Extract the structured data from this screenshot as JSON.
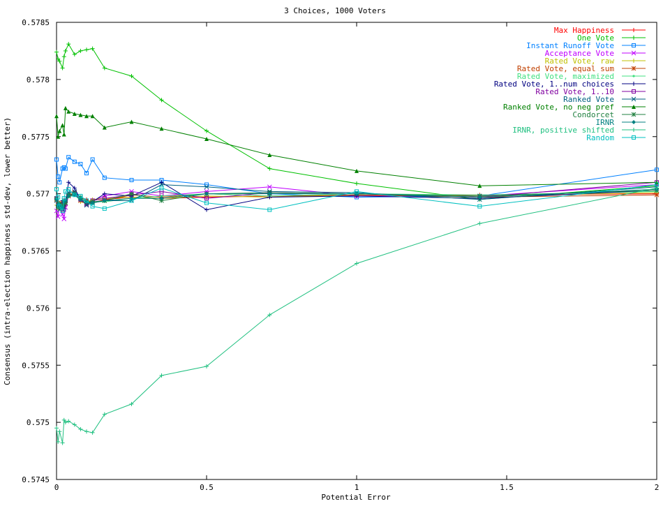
{
  "chart_data": {
    "type": "line",
    "title": "3 Choices, 1000 Voters",
    "xlabel": "Potential Error",
    "ylabel": "Consensus (intra-election happiness std-dev, lower better)",
    "xlim": [
      0,
      2
    ],
    "ylim": [
      0.5745,
      0.5785
    ],
    "x_ticks": [
      {
        "value": 0,
        "label": "0"
      },
      {
        "value": 0.5,
        "label": "0.5"
      },
      {
        "value": 1,
        "label": "1"
      },
      {
        "value": 1.5,
        "label": "1.5"
      },
      {
        "value": 2,
        "label": "2"
      }
    ],
    "y_ticks": [
      {
        "value": 0.5745,
        "label": "0.5745"
      },
      {
        "value": 0.575,
        "label": "0.575"
      },
      {
        "value": 0.5755,
        "label": "0.5755"
      },
      {
        "value": 0.576,
        "label": "0.576"
      },
      {
        "value": 0.5765,
        "label": "0.5765"
      },
      {
        "value": 0.577,
        "label": "0.577"
      },
      {
        "value": 0.5775,
        "label": "0.5775"
      },
      {
        "value": 0.578,
        "label": "0.578"
      },
      {
        "value": 0.5785,
        "label": "0.5785"
      }
    ],
    "grid": false,
    "legend_position": "top-right",
    "x": [
      0,
      0.005,
      0.01,
      0.02,
      0.025,
      0.03,
      0.04,
      0.06,
      0.08,
      0.1,
      0.12,
      0.16,
      0.25,
      0.35,
      0.5,
      0.71,
      1,
      1.41,
      2
    ],
    "series": [
      {
        "name": "Max Happiness",
        "color": "#ff0000",
        "marker": "plus-line",
        "values": [
          0.5769,
          0.57692,
          0.57688,
          0.5769,
          0.57687,
          0.5769,
          0.57698,
          0.577,
          0.57697,
          0.57695,
          0.57692,
          0.57695,
          0.57697,
          0.57696,
          0.57697,
          0.57698,
          0.57698,
          0.57699,
          0.577
        ]
      },
      {
        "name": "One Vote",
        "color": "#00c000",
        "marker": "plus",
        "values": [
          0.57824,
          0.57818,
          0.57816,
          0.5781,
          0.5782,
          0.57825,
          0.57831,
          0.57822,
          0.57825,
          0.57826,
          0.57827,
          0.5781,
          0.57803,
          0.57782,
          0.57755,
          0.57722,
          0.57709,
          0.57695,
          0.57707
        ]
      },
      {
        "name": "Instant Runoff Vote",
        "color": "#0080ff",
        "marker": "square",
        "values": [
          0.5773,
          0.57715,
          0.5771,
          0.57722,
          0.57723,
          0.57722,
          0.57732,
          0.57728,
          0.57726,
          0.57718,
          0.5773,
          0.57714,
          0.57712,
          0.57712,
          0.57708,
          0.577,
          0.57697,
          0.57698,
          0.57721
        ]
      },
      {
        "name": "Acceptance Vote",
        "color": "#c000ff",
        "marker": "x",
        "values": [
          0.57685,
          0.5768,
          0.5769,
          0.57682,
          0.57678,
          0.57688,
          0.57698,
          0.57702,
          0.57696,
          0.5769,
          0.57694,
          0.57698,
          0.57702,
          0.57698,
          0.57702,
          0.57706,
          0.57698,
          0.57698,
          0.57708
        ]
      },
      {
        "name": "Rated Vote, raw",
        "color": "#c0c000",
        "marker": "plus-line",
        "values": [
          0.5769,
          0.57687,
          0.57692,
          0.5769,
          0.57693,
          0.57692,
          0.57699,
          0.57701,
          0.57693,
          0.57692,
          0.57695,
          0.57696,
          0.57697,
          0.57696,
          0.57698,
          0.57697,
          0.57699,
          0.57698,
          0.57701
        ]
      },
      {
        "name": "Rated Vote, equal sum",
        "color": "#c04000",
        "marker": "star",
        "values": [
          0.57695,
          0.57688,
          0.57692,
          0.57686,
          0.5769,
          0.57694,
          0.57698,
          0.57701,
          0.57694,
          0.57691,
          0.57692,
          0.57694,
          0.57699,
          0.57697,
          0.577,
          0.57698,
          0.57699,
          0.57697,
          0.57699
        ]
      },
      {
        "name": "Rated Vote, maximized",
        "color": "#40e080",
        "marker": "dot",
        "values": [
          0.57694,
          0.5769,
          0.5769,
          0.57688,
          0.57692,
          0.57693,
          0.57697,
          0.57699,
          0.57694,
          0.57692,
          0.57693,
          0.57693,
          0.57696,
          0.57698,
          0.577,
          0.57698,
          0.577,
          0.57699,
          0.57702
        ]
      },
      {
        "name": "Rated Vote, 1..num choices",
        "color": "#000080",
        "marker": "plus",
        "values": [
          0.57697,
          0.5769,
          0.57688,
          0.57694,
          0.57685,
          0.57692,
          0.5771,
          0.57705,
          0.57695,
          0.57691,
          0.57693,
          0.577,
          0.57698,
          0.5771,
          0.57686,
          0.57697,
          0.57698,
          0.57696,
          0.57703
        ]
      },
      {
        "name": "Rated Vote, 1..10",
        "color": "#8000a0",
        "marker": "square",
        "values": [
          0.57696,
          0.57689,
          0.5769,
          0.57687,
          0.57692,
          0.57694,
          0.57699,
          0.577,
          0.57695,
          0.57691,
          0.57694,
          0.57696,
          0.57699,
          0.57702,
          0.57696,
          0.57701,
          0.577,
          0.57697,
          0.5771
        ]
      },
      {
        "name": "Ranked Vote",
        "color": "#006080",
        "marker": "x",
        "values": [
          0.57694,
          0.5769,
          0.57686,
          0.5769,
          0.57688,
          0.57692,
          0.57701,
          0.57702,
          0.57696,
          0.5769,
          0.57692,
          0.57694,
          0.57694,
          0.57708,
          0.57706,
          0.57702,
          0.57701,
          0.57695,
          0.57706
        ]
      },
      {
        "name": "Ranked Vote, no neg pref",
        "color": "#008000",
        "marker": "triangle",
        "values": [
          0.57768,
          0.5775,
          0.57755,
          0.5776,
          0.57752,
          0.57775,
          0.57772,
          0.5777,
          0.57769,
          0.57768,
          0.57768,
          0.57758,
          0.57763,
          0.57757,
          0.57748,
          0.57734,
          0.5772,
          0.57707,
          0.5771
        ]
      },
      {
        "name": "Condorcet",
        "color": "#208040",
        "marker": "star",
        "values": [
          0.57696,
          0.57688,
          0.57691,
          0.5769,
          0.57694,
          0.57692,
          0.57699,
          0.577,
          0.57697,
          0.57693,
          0.57693,
          0.57694,
          0.577,
          0.57694,
          0.577,
          0.57701,
          0.577,
          0.57698,
          0.57703
        ]
      },
      {
        "name": "IRNR",
        "color": "#008080",
        "marker": "diamond",
        "values": [
          0.57695,
          0.5769,
          0.5769,
          0.57688,
          0.57693,
          0.57694,
          0.57698,
          0.57699,
          0.57695,
          0.57693,
          0.57692,
          0.57694,
          0.57696,
          0.57696,
          0.577,
          0.577,
          0.577,
          0.57697,
          0.57704
        ]
      },
      {
        "name": "IRNR, positive shifted",
        "color": "#20c080",
        "marker": "plus",
        "values": [
          0.57495,
          0.57483,
          0.57492,
          0.57482,
          0.57502,
          0.575,
          0.57501,
          0.57498,
          0.57494,
          0.57492,
          0.57491,
          0.57507,
          0.57516,
          0.57541,
          0.57549,
          0.57594,
          0.57639,
          0.57674,
          0.57705
        ]
      },
      {
        "name": "Random",
        "color": "#00c0c0",
        "marker": "square",
        "values": [
          0.57704,
          0.57697,
          0.57689,
          0.57685,
          0.57696,
          0.57702,
          0.57704,
          0.57699,
          0.57698,
          0.57694,
          0.57689,
          0.57687,
          0.57694,
          0.57705,
          0.57692,
          0.57686,
          0.57702,
          0.57689,
          0.57708
        ]
      }
    ]
  }
}
